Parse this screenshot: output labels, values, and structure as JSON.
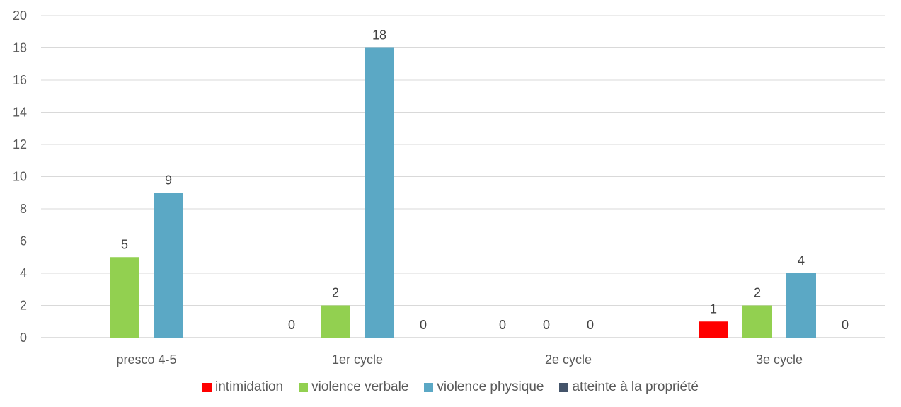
{
  "chart_data": {
    "type": "bar",
    "categories": [
      "presco 4-5",
      "1er cycle",
      "2e cycle",
      "3e cycle"
    ],
    "series": [
      {
        "name": "intimidation",
        "color": "#FF0000",
        "values": [
          null,
          0,
          0,
          1
        ]
      },
      {
        "name": "violence verbale",
        "color": "#92D050",
        "values": [
          5,
          2,
          0,
          2
        ]
      },
      {
        "name": "violence physique",
        "color": "#5BA8C5",
        "values": [
          9,
          18,
          0,
          4
        ]
      },
      {
        "name": "atteinte à la propriété",
        "color": "#44546A",
        "values": [
          null,
          0,
          null,
          0
        ]
      }
    ],
    "yticks": [
      "0",
      "2",
      "4",
      "6",
      "8",
      "10",
      "12",
      "14",
      "16",
      "18",
      "20"
    ],
    "ylim": [
      0,
      20
    ],
    "grid": true,
    "legend_position": "bottom",
    "title": "",
    "xlabel": "",
    "ylabel": ""
  }
}
